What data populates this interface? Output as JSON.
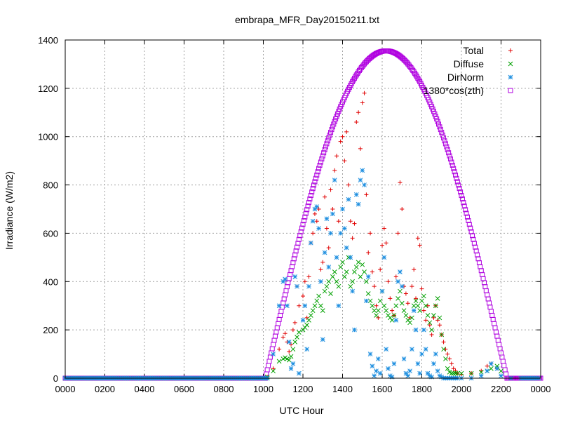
{
  "chart_data": {
    "type": "scatter",
    "title": "embrapa_MFR_Day20150211.txt",
    "xlabel": "UTC Hour",
    "ylabel": "Irradiance (W/m2)",
    "xlim": [
      0,
      24
    ],
    "ylim": [
      0,
      1400
    ],
    "x_ticks": [
      0,
      2,
      4,
      6,
      8,
      10,
      12,
      14,
      16,
      18,
      20,
      22,
      24
    ],
    "x_tick_labels": [
      "0000",
      "0200",
      "0400",
      "0600",
      "0800",
      "1000",
      "1200",
      "1400",
      "1600",
      "1800",
      "2000",
      "2200",
      "0000"
    ],
    "y_ticks": [
      0,
      200,
      400,
      600,
      800,
      1000,
      1200,
      1400
    ],
    "y_tick_labels": [
      "0",
      "200",
      "400",
      "600",
      "800",
      "1000",
      "1200",
      "1400"
    ],
    "grid": true,
    "legend_position": "top-right",
    "series": [
      {
        "name": "Total",
        "marker": "plus",
        "color": "#e00000",
        "x": [
          10.2,
          10.5,
          10.8,
          11.0,
          11.1,
          11.2,
          11.3,
          11.4,
          11.5,
          11.6,
          11.7,
          11.8,
          12.0,
          12.1,
          12.2,
          12.3,
          12.4,
          12.5,
          12.6,
          12.7,
          12.8,
          12.9,
          13.0,
          13.1,
          13.2,
          13.3,
          13.4,
          13.5,
          13.6,
          13.7,
          13.8,
          13.9,
          14.0,
          14.1,
          14.2,
          14.3,
          14.4,
          14.5,
          14.6,
          14.7,
          14.8,
          14.9,
          15.0,
          15.1,
          15.2,
          15.3,
          15.4,
          15.5,
          15.6,
          15.7,
          15.8,
          15.9,
          16.0,
          16.1,
          16.2,
          16.3,
          16.4,
          16.5,
          16.6,
          16.7,
          16.8,
          16.9,
          17.0,
          17.1,
          17.2,
          17.3,
          17.4,
          17.5,
          17.6,
          17.7,
          17.8,
          17.9,
          18.0,
          18.1,
          18.2,
          18.3,
          18.4,
          18.5,
          18.6,
          18.7,
          18.8,
          18.9,
          19.0,
          19.1,
          19.2,
          19.3,
          19.4,
          19.5,
          19.6,
          19.7,
          19.8,
          20.0,
          20.5,
          21.0,
          21.3,
          21.5,
          21.8,
          22.0,
          22.5,
          23.0
        ],
        "y": [
          5,
          40,
          120,
          170,
          185,
          150,
          110,
          140,
          200,
          230,
          380,
          300,
          340,
          400,
          250,
          420,
          560,
          600,
          680,
          650,
          700,
          450,
          480,
          750,
          620,
          540,
          780,
          700,
          860,
          920,
          650,
          980,
          1000,
          900,
          1020,
          800,
          650,
          580,
          640,
          1060,
          1100,
          950,
          1140,
          1180,
          760,
          520,
          600,
          440,
          380,
          300,
          250,
          450,
          550,
          620,
          560,
          400,
          330,
          280,
          260,
          420,
          600,
          810,
          700,
          380,
          350,
          310,
          250,
          380,
          450,
          330,
          580,
          550,
          370,
          280,
          240,
          300,
          220,
          180,
          250,
          300,
          240,
          220,
          180,
          150,
          120,
          100,
          80,
          60,
          40,
          30,
          20,
          15,
          20,
          30,
          50,
          60,
          40,
          10,
          0,
          0
        ]
      },
      {
        "name": "Diffuse",
        "marker": "cross",
        "color": "#00a000",
        "x": [
          10.2,
          10.5,
          10.8,
          11.0,
          11.1,
          11.2,
          11.3,
          11.4,
          11.5,
          11.6,
          11.7,
          11.8,
          12.0,
          12.1,
          12.2,
          12.3,
          12.4,
          12.5,
          12.6,
          12.7,
          12.8,
          12.9,
          13.0,
          13.1,
          13.2,
          13.3,
          13.4,
          13.5,
          13.6,
          13.7,
          13.8,
          13.9,
          14.0,
          14.1,
          14.2,
          14.3,
          14.4,
          14.5,
          14.6,
          14.7,
          14.8,
          14.9,
          15.0,
          15.1,
          15.2,
          15.3,
          15.4,
          15.5,
          15.6,
          15.7,
          15.8,
          15.9,
          16.0,
          16.1,
          16.2,
          16.3,
          16.4,
          16.5,
          16.6,
          16.7,
          16.8,
          16.9,
          17.0,
          17.1,
          17.2,
          17.3,
          17.4,
          17.5,
          17.6,
          17.7,
          17.8,
          17.9,
          18.0,
          18.1,
          18.2,
          18.3,
          18.4,
          18.5,
          18.6,
          18.7,
          18.8,
          18.9,
          19.0,
          19.1,
          19.2,
          19.3,
          19.4,
          19.5,
          19.6,
          19.7,
          19.8,
          20.0,
          20.5,
          21.0,
          21.3,
          21.5,
          21.8,
          22.0,
          22.5,
          23.0
        ],
        "y": [
          5,
          30,
          70,
          80,
          85,
          80,
          75,
          90,
          120,
          150,
          170,
          190,
          200,
          210,
          220,
          240,
          260,
          280,
          300,
          320,
          340,
          300,
          280,
          360,
          380,
          400,
          350,
          420,
          440,
          400,
          380,
          460,
          480,
          420,
          440,
          500,
          380,
          400,
          440,
          460,
          480,
          420,
          470,
          440,
          400,
          350,
          320,
          300,
          280,
          260,
          280,
          320,
          360,
          300,
          280,
          260,
          250,
          240,
          260,
          300,
          330,
          360,
          310,
          280,
          260,
          240,
          230,
          250,
          300,
          320,
          300,
          280,
          320,
          340,
          300,
          260,
          230,
          200,
          260,
          300,
          330,
          250,
          180,
          120,
          80,
          40,
          25,
          20,
          20,
          20,
          20,
          20,
          20,
          25,
          30,
          40,
          50,
          30,
          0,
          0
        ]
      },
      {
        "name": "DirNorm",
        "marker": "star",
        "color": "#1e8fe0",
        "x": [
          10.2,
          10.5,
          10.8,
          11.0,
          11.1,
          11.2,
          11.3,
          11.4,
          11.5,
          11.6,
          11.7,
          11.8,
          12.0,
          12.1,
          12.2,
          12.3,
          12.4,
          12.5,
          12.6,
          12.7,
          12.8,
          12.9,
          13.0,
          13.1,
          13.2,
          13.3,
          13.4,
          13.5,
          13.6,
          13.7,
          13.8,
          13.9,
          14.0,
          14.1,
          14.2,
          14.3,
          14.4,
          14.5,
          14.6,
          14.7,
          14.8,
          14.9,
          15.0,
          15.1,
          15.2,
          15.3,
          15.4,
          15.5,
          15.6,
          15.7,
          15.8,
          15.9,
          16.0,
          16.1,
          16.2,
          16.3,
          16.4,
          16.5,
          16.6,
          16.7,
          16.8,
          16.9,
          17.0,
          17.1,
          17.2,
          17.3,
          17.4,
          17.5,
          17.6,
          17.7,
          17.8,
          17.9,
          18.0,
          18.1,
          18.2,
          18.3,
          18.4,
          18.5,
          18.6,
          18.7,
          18.8,
          18.9,
          19.0,
          19.1,
          19.2,
          19.3,
          19.4,
          19.5,
          19.6,
          19.7,
          19.8,
          20.0,
          20.5,
          21.0,
          21.3,
          21.5,
          21.8,
          22.0,
          22.5,
          23.0
        ],
        "y": [
          0,
          100,
          300,
          400,
          410,
          300,
          150,
          40,
          60,
          420,
          380,
          20,
          240,
          300,
          120,
          380,
          560,
          650,
          700,
          710,
          620,
          400,
          160,
          520,
          660,
          460,
          600,
          680,
          820,
          500,
          300,
          600,
          700,
          620,
          540,
          740,
          500,
          360,
          200,
          760,
          720,
          820,
          860,
          800,
          320,
          420,
          100,
          50,
          10,
          30,
          80,
          20,
          360,
          500,
          120,
          40,
          10,
          5,
          60,
          240,
          400,
          440,
          380,
          80,
          20,
          10,
          30,
          120,
          280,
          200,
          60,
          20,
          100,
          200,
          120,
          20,
          10,
          5,
          60,
          100,
          30,
          10,
          5,
          0,
          0,
          0,
          0,
          0,
          0,
          0,
          0,
          0,
          0,
          10,
          30,
          60,
          40,
          10,
          0,
          0
        ]
      },
      {
        "name": "1380*cos(zth)",
        "marker": "open-square",
        "color": "#b000e0",
        "solar_constant": 1380,
        "sunrise_hour": 10.1,
        "sunset_hour": 22.3,
        "peak_hour": 16.2,
        "peak_value": 1355
      }
    ]
  }
}
